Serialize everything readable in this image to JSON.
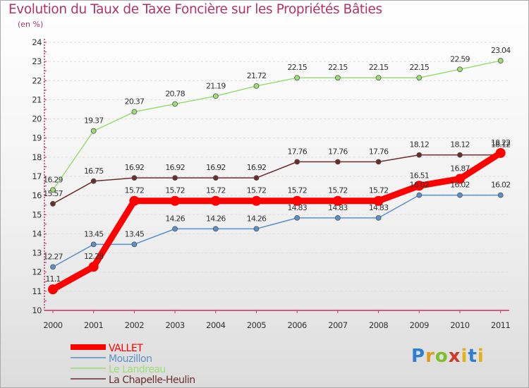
{
  "title": "Evolution du Taux de Taxe Foncière sur les Propriétés Bâties",
  "unit_label": "(en %)",
  "logo": {
    "text": "Proxiti"
  },
  "colors": {
    "title": "#b2336a",
    "axis": "#cc3366",
    "grid": "#dddddd",
    "vallet": "#ff0000",
    "mouzillon": "#5b8fc7",
    "landreau": "#9cdc74",
    "chapelle": "#6b2c2c"
  },
  "chart_data": {
    "type": "line",
    "title": "Evolution du Taux de Taxe Foncière sur les Propriétés Bâties",
    "ylabel": "(en %)",
    "xlabel": "",
    "ylim": [
      10,
      24
    ],
    "yticks": [
      10,
      11,
      12,
      13,
      14,
      15,
      16,
      17,
      18,
      19,
      20,
      21,
      22,
      23,
      24
    ],
    "grid": "horizontal dashed",
    "legend_position": "bottom-left",
    "categories": [
      "2000",
      "2001",
      "2002",
      "2003",
      "2004",
      "2005",
      "2006",
      "2007",
      "2008",
      "2009",
      "2010",
      "2011"
    ],
    "series": [
      {
        "name": "VALLET",
        "color": "#ff0000",
        "emphasis": true,
        "values": [
          11.1,
          12.28,
          15.72,
          15.72,
          15.72,
          15.72,
          15.72,
          15.72,
          15.72,
          16.51,
          16.87,
          18.22
        ],
        "labels": [
          "11.1",
          "12.28",
          "15.72",
          "15.72",
          "15.72",
          "15.72",
          "15.72",
          "15.72",
          "15.72",
          "16.51",
          "16.87",
          "18.22"
        ]
      },
      {
        "name": "Mouzillon",
        "color": "#5b8fc7",
        "values": [
          12.27,
          13.45,
          13.45,
          14.26,
          14.26,
          14.26,
          14.83,
          14.83,
          14.83,
          16.02,
          16.02,
          16.02
        ],
        "labels": [
          "12.27",
          "13.45",
          "13.45",
          "14.26",
          "14.26",
          "14.26",
          "14.83",
          "14.83",
          "14.83",
          "16.02",
          "16.02",
          "16.02"
        ]
      },
      {
        "name": "Le Landreau",
        "color": "#9cdc74",
        "values": [
          16.29,
          19.37,
          20.37,
          20.78,
          21.19,
          21.72,
          22.15,
          22.15,
          22.15,
          22.15,
          22.59,
          23.04
        ],
        "labels": [
          "16.29",
          "19.37",
          "20.37",
          "20.78",
          "21.19",
          "21.72",
          "22.15",
          "22.15",
          "22.15",
          "22.15",
          "22.59",
          "23.04"
        ]
      },
      {
        "name": "La Chapelle-Heulin",
        "color": "#6b2c2c",
        "values": [
          15.57,
          16.75,
          16.92,
          16.92,
          16.92,
          16.92,
          17.76,
          17.76,
          17.76,
          18.12,
          18.12,
          18.12
        ],
        "labels": [
          "15.57",
          "16.75",
          "16.92",
          "16.92",
          "16.92",
          "16.92",
          "17.76",
          "17.76",
          "17.76",
          "18.12",
          "18.12",
          "18.12"
        ]
      }
    ]
  }
}
